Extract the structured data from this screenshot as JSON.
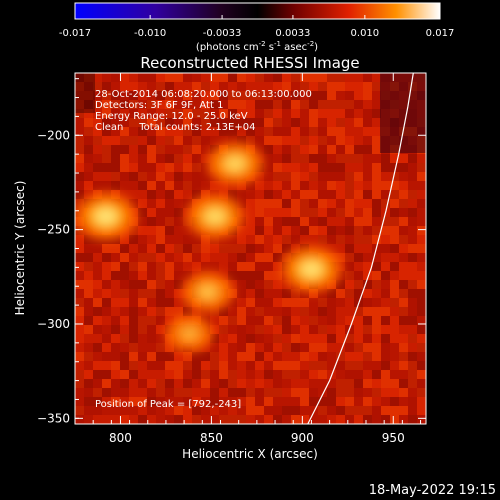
{
  "chart_data": {
    "type": "heatmap",
    "title": "Reconstructed RHESSI Image",
    "xlabel": "Heliocentric X (arcsec)",
    "ylabel": "Heliocentric Y (arcsec)",
    "xlim": [
      775,
      968
    ],
    "ylim": [
      -353,
      -167
    ],
    "xticks": [
      800,
      850,
      900,
      950
    ],
    "yticks": [
      -200,
      -250,
      -300,
      -350
    ],
    "colorbar": {
      "range": [
        -0.017,
        0.017
      ],
      "ticks": [
        "-0.017",
        "-0.010",
        "-0.0033",
        "0.0033",
        "0.010",
        "0.017"
      ],
      "unit_prefix": "(photons cm",
      "unit_exp1": "-2",
      "unit_mid": " s",
      "unit_exp2": "-1",
      "unit_mid2": " asec",
      "unit_exp3": "-2",
      "unit_suffix": ")",
      "colormap": "red-temperature",
      "colors": [
        "#0000ff",
        "#400070",
        "#000000",
        "#800000",
        "#ff4000",
        "#ffa000",
        "#ffffff"
      ]
    },
    "annotations": [
      "28-Oct-2014 06:08:20.000 to 06:13:00.000",
      "Detectors: 3F 6F 9F, Att 1",
      "Energy Range: 12.0 - 25.0 keV",
      "Clean     Total counts: 2.13E+04"
    ],
    "peak_label": "Position of Peak = [792,-243]",
    "sources": [
      {
        "x": 792,
        "y": -243,
        "intensity": 1.0
      },
      {
        "x": 905,
        "y": -271,
        "intensity": 0.95
      },
      {
        "x": 852,
        "y": -243,
        "intensity": 0.85
      },
      {
        "x": 863,
        "y": -215,
        "intensity": 0.8
      },
      {
        "x": 848,
        "y": -283,
        "intensity": 0.6
      },
      {
        "x": 838,
        "y": -305,
        "intensity": 0.45
      }
    ],
    "limb_curve": [
      [
        903,
        -353
      ],
      [
        915,
        -330
      ],
      [
        927,
        -300
      ],
      [
        938,
        -270
      ],
      [
        946,
        -240
      ],
      [
        953,
        -210
      ],
      [
        958,
        -185
      ],
      [
        961,
        -167
      ]
    ]
  },
  "footer": {
    "date": "18-May-2022 19:15"
  }
}
